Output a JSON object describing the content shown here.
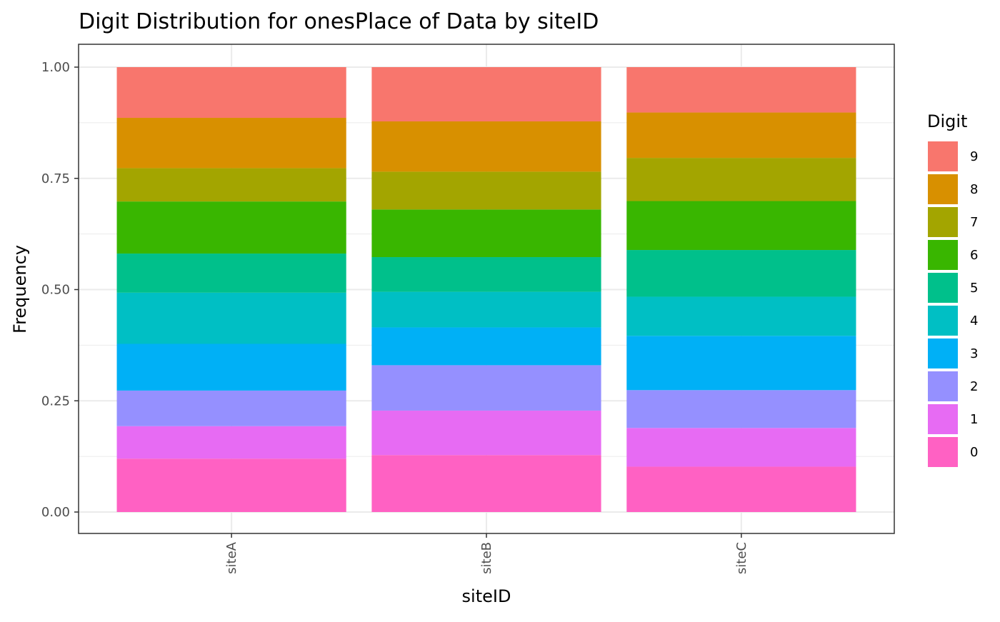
{
  "chart_data": {
    "type": "bar",
    "stacked": true,
    "title": "Digit Distribution for onesPlace of Data by siteID",
    "xlabel": "siteID",
    "ylabel": "Frequency",
    "ylim": [
      0,
      1
    ],
    "yticks": [
      "0.00",
      "0.25",
      "0.50",
      "0.75",
      "1.00"
    ],
    "ytick_values": [
      0,
      0.25,
      0.5,
      0.75,
      1.0
    ],
    "categories": [
      "siteA",
      "siteB",
      "siteC"
    ],
    "grid": true,
    "legend": {
      "title": "Digit",
      "position": "right"
    },
    "series": [
      {
        "name": "0",
        "color": "#FF61C3",
        "values": [
          0.12,
          0.128,
          0.102
        ]
      },
      {
        "name": "1",
        "color": "#E76BF3",
        "values": [
          0.073,
          0.1,
          0.087
        ]
      },
      {
        "name": "2",
        "color": "#9590FF",
        "values": [
          0.08,
          0.102,
          0.085
        ]
      },
      {
        "name": "3",
        "color": "#00B0F6",
        "values": [
          0.105,
          0.085,
          0.122
        ]
      },
      {
        "name": "4",
        "color": "#00BFC4",
        "values": [
          0.115,
          0.08,
          0.088
        ]
      },
      {
        "name": "5",
        "color": "#00C08B",
        "values": [
          0.088,
          0.078,
          0.105
        ]
      },
      {
        "name": "6",
        "color": "#39B600",
        "values": [
          0.117,
          0.107,
          0.11
        ]
      },
      {
        "name": "7",
        "color": "#A3A500",
        "values": [
          0.075,
          0.085,
          0.097
        ]
      },
      {
        "name": "8",
        "color": "#D89000",
        "values": [
          0.113,
          0.113,
          0.102
        ]
      },
      {
        "name": "9",
        "color": "#F8766D",
        "values": [
          0.114,
          0.122,
          0.102
        ]
      }
    ]
  }
}
